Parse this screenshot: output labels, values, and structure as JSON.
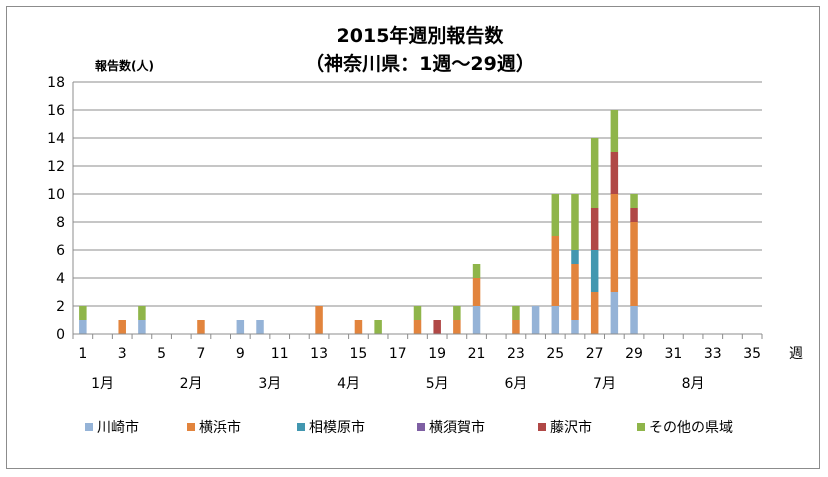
{
  "chart_data": {
    "type": "bar",
    "stacked": true,
    "title": "2015年週別報告数",
    "subtitle": "（神奈川県：1週〜29週）",
    "ylabel": "報告数(人)",
    "xlabel": "週",
    "ylim": [
      0,
      18
    ],
    "ystep": 2,
    "x_range": [
      1,
      35
    ],
    "x_tick_labels": [
      1,
      3,
      5,
      7,
      9,
      11,
      13,
      15,
      17,
      19,
      21,
      23,
      25,
      27,
      29,
      31,
      33,
      35
    ],
    "grid": true,
    "legend_position": "bottom",
    "months": [
      {
        "label": "1月",
        "week": 2
      },
      {
        "label": "2月",
        "week": 6.5
      },
      {
        "label": "3月",
        "week": 10.5
      },
      {
        "label": "4月",
        "week": 14.5
      },
      {
        "label": "5月",
        "week": 19
      },
      {
        "label": "6月",
        "week": 23
      },
      {
        "label": "7月",
        "week": 27.5
      },
      {
        "label": "8月",
        "week": 32
      }
    ],
    "series": [
      {
        "name": "川崎市",
        "color": "#95b3d7",
        "values": {
          "1": 1,
          "4": 1,
          "9": 1,
          "10": 1,
          "21": 2,
          "24": 2,
          "25": 2,
          "26": 1,
          "28": 3,
          "29": 2
        }
      },
      {
        "name": "横浜市",
        "color": "#e2843d",
        "values": {
          "3": 1,
          "7": 1,
          "13": 2,
          "15": 1,
          "18": 1,
          "20": 1,
          "21": 2,
          "23": 1,
          "25": 5,
          "26": 4,
          "27": 3,
          "28": 7,
          "29": 6
        }
      },
      {
        "name": "相模原市",
        "color": "#4297b0",
        "values": {
          "26": 1,
          "27": 3
        }
      },
      {
        "name": "横須賀市",
        "color": "#7e5fa3",
        "values": {}
      },
      {
        "name": "藤沢市",
        "color": "#b04846",
        "values": {
          "19": 1,
          "27": 3,
          "28": 3,
          "29": 1
        }
      },
      {
        "name": "その他の県域",
        "color": "#8fb54a",
        "values": {
          "1": 1,
          "4": 1,
          "16": 1,
          "18": 1,
          "20": 1,
          "21": 1,
          "23": 1,
          "25": 3,
          "26": 4,
          "27": 5,
          "28": 3,
          "29": 1
        }
      }
    ]
  }
}
